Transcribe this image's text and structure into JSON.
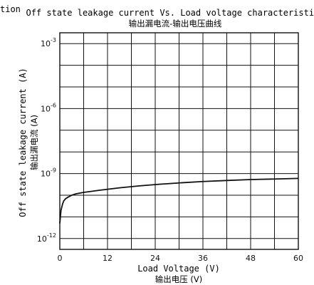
{
  "corner_label": "tion",
  "chart_data": {
    "type": "line",
    "title": "Off state leakage current Vs. Load voltage characteristics",
    "subtitle": "输出漏电流-输出电压曲线",
    "xlabel": "Load Voltage (V)",
    "xlabel_cn": "输出电压 (V)",
    "ylabel": "Off state leakage current (A)",
    "ylabel_cn": "输出漏电流 (A)",
    "y_scale": "log",
    "xlim": [
      0,
      60
    ],
    "ylim_exp": [
      -12.5,
      -2.5
    ],
    "x_ticks": [
      0,
      12,
      24,
      36,
      48,
      60
    ],
    "x_tick_labels": [
      "0",
      "12",
      "24",
      "36",
      "48",
      "60"
    ],
    "y_ticks_exp": [
      -3,
      -6,
      -9,
      -12
    ],
    "y_tick_base": "10",
    "y_tick_exponents": [
      "-3",
      "-6",
      "-9",
      "-12"
    ],
    "grid": true,
    "grid_x_step": 6,
    "grid_y_exp_step": 1,
    "line_color": "#111111",
    "series": [
      {
        "x": [
          0,
          0.3,
          0.7,
          1,
          1.5,
          2,
          3,
          4,
          6,
          10,
          15,
          20,
          25,
          30,
          36,
          42,
          48,
          54,
          60
        ],
        "y": [
          5e-12,
          2e-11,
          4e-11,
          5.5e-11,
          7e-11,
          8e-11,
          1e-10,
          1.15e-10,
          1.35e-10,
          1.7e-10,
          2.2e-10,
          2.7e-10,
          3.2e-10,
          3.7e-10,
          4.3e-10,
          4.8e-10,
          5.3e-10,
          5.6e-10,
          6e-10
        ]
      }
    ]
  }
}
